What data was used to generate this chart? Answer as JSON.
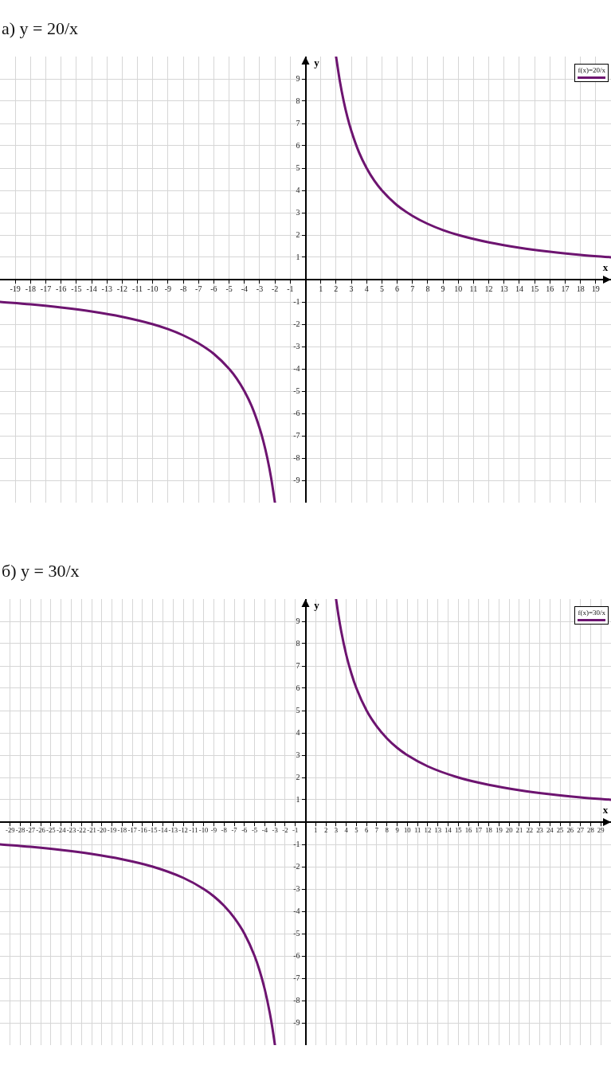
{
  "chart_data": [
    {
      "type": "line",
      "title": "а) y = 20/x",
      "xlabel": "x",
      "ylabel": "y",
      "xlim": [
        -20,
        20
      ],
      "ylim": [
        -10,
        10
      ],
      "xticks": [
        -19,
        -18,
        -17,
        -16,
        -15,
        -14,
        -13,
        -12,
        -11,
        -10,
        -9,
        -8,
        -7,
        -6,
        -5,
        -4,
        -3,
        -2,
        -1,
        1,
        2,
        3,
        4,
        5,
        6,
        7,
        8,
        9,
        10,
        11,
        12,
        13,
        14,
        15,
        16,
        17,
        18,
        19
      ],
      "yticks": [
        -9,
        -8,
        -7,
        -6,
        -5,
        -4,
        -3,
        -2,
        -1,
        1,
        2,
        3,
        4,
        5,
        6,
        7,
        8,
        9
      ],
      "grid": true,
      "legend": "top right",
      "series": [
        {
          "name": "f(x)=20/x",
          "color": "#6d1470",
          "x": [
            -20,
            -18,
            -16,
            -14,
            -12,
            -10,
            -9,
            -8,
            -7,
            -6,
            -5,
            -4.5,
            -4,
            -3.5,
            -3,
            -2.75,
            -2.5,
            -2.25,
            -2,
            0,
            2,
            2.25,
            2.5,
            2.75,
            3,
            3.5,
            4,
            4.5,
            5,
            6,
            7,
            8,
            9,
            10,
            12,
            14,
            16,
            18,
            20
          ],
          "values": [
            -1,
            -1.11,
            -1.25,
            -1.43,
            -1.67,
            -2,
            -2.22,
            -2.5,
            -2.86,
            -3.33,
            -4,
            -4.44,
            -5,
            -5.71,
            -6.67,
            -7.27,
            -8,
            -8.89,
            -10,
            null,
            10,
            8.89,
            8,
            7.27,
            6.67,
            5.71,
            5,
            4.44,
            4,
            3.33,
            2.86,
            2.5,
            2.22,
            2,
            1.67,
            1.43,
            1.25,
            1.11,
            1
          ]
        }
      ]
    },
    {
      "type": "line",
      "title": "б) y = 30/x",
      "xlabel": "x",
      "ylabel": "y",
      "xlim": [
        -30,
        30
      ],
      "ylim": [
        -10,
        10
      ],
      "xticks": [
        -29,
        -28,
        -27,
        -26,
        -25,
        -24,
        -23,
        -22,
        -21,
        -20,
        -19,
        -18,
        -17,
        -16,
        -15,
        -14,
        -13,
        -12,
        -11,
        -10,
        -9,
        -8,
        -7,
        -6,
        -5,
        -4,
        -3,
        -2,
        -1,
        1,
        2,
        3,
        4,
        5,
        6,
        7,
        8,
        9,
        10,
        11,
        12,
        13,
        14,
        15,
        16,
        17,
        18,
        19,
        20,
        21,
        22,
        23,
        24,
        25,
        26,
        27,
        28,
        29
      ],
      "yticks": [
        -9,
        -8,
        -7,
        -6,
        -5,
        -4,
        -3,
        -2,
        -1,
        1,
        2,
        3,
        4,
        5,
        6,
        7,
        8,
        9
      ],
      "grid": true,
      "legend": "top right",
      "series": [
        {
          "name": "f(x)=30/x",
          "color": "#6d1470",
          "x": [
            -30,
            -27,
            -24,
            -21,
            -18,
            -15,
            -12,
            -10,
            -9,
            -8,
            -7,
            -6,
            -5,
            -4.5,
            -4,
            -3.5,
            -3.25,
            -3,
            0,
            3,
            3.25,
            3.5,
            4,
            4.5,
            5,
            6,
            7,
            8,
            9,
            10,
            12,
            15,
            18,
            21,
            24,
            27,
            30
          ],
          "values": [
            -1,
            -1.11,
            -1.25,
            -1.43,
            -1.67,
            -2,
            -2.5,
            -3,
            -3.33,
            -3.75,
            -4.29,
            -5,
            -6,
            -6.67,
            -7.5,
            -8.57,
            -9.23,
            -10,
            null,
            10,
            9.23,
            8.57,
            7.5,
            6.67,
            6,
            5,
            4.29,
            3.75,
            3.33,
            3,
            2.5,
            2,
            1.67,
            1.43,
            1.25,
            1.11,
            1
          ]
        }
      ]
    }
  ]
}
